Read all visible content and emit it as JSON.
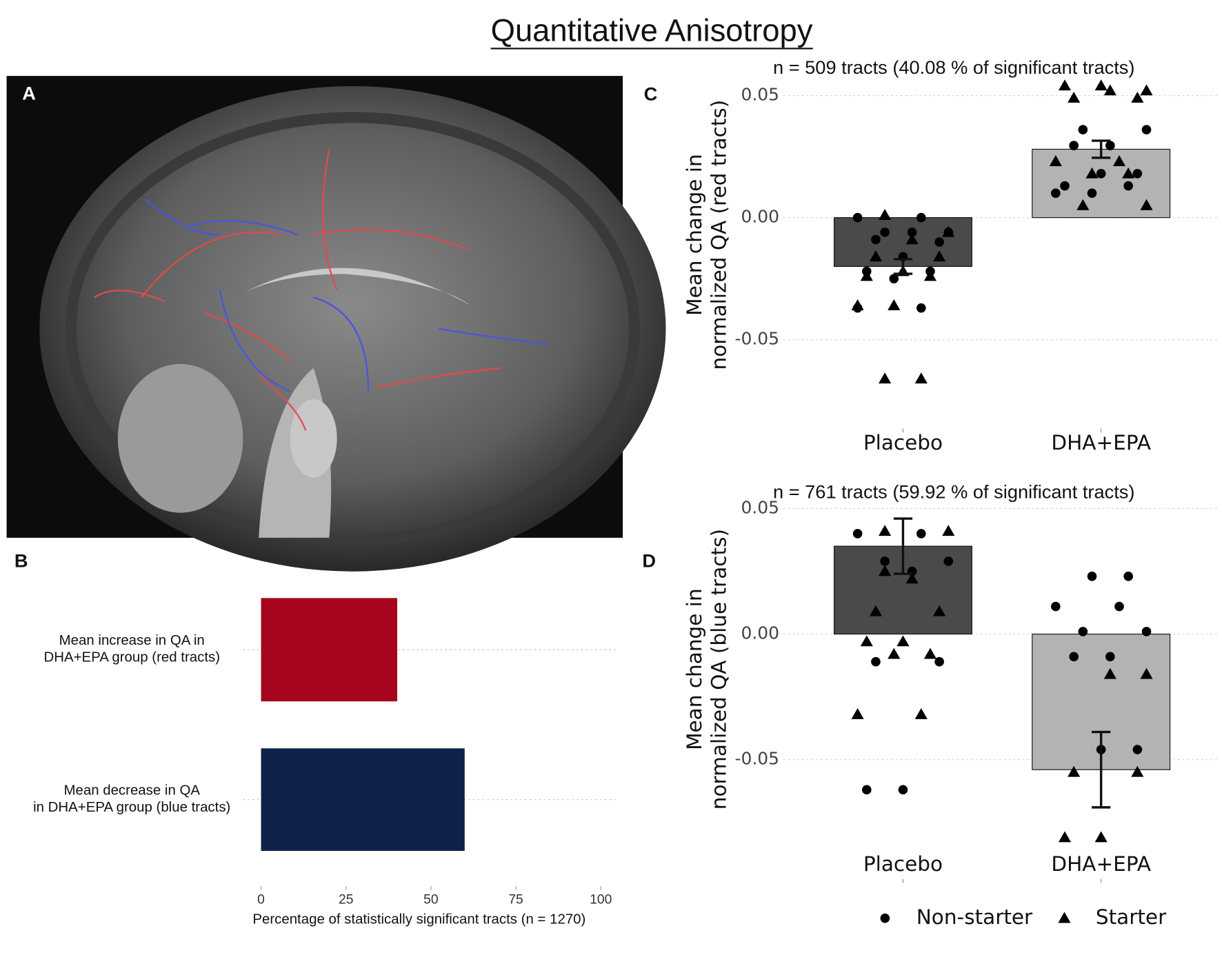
{
  "title": "Quantitative Anisotropy",
  "panel_labels": [
    "A",
    "B",
    "C",
    "D"
  ],
  "chart_data": [
    {
      "type": "barh",
      "categories": [
        "Mean increase in QA in\nDHA+EPA group (red tracts)",
        "Mean decrease in QA\nin DHA+EPA group (blue tracts)"
      ],
      "values": [
        40.08,
        59.92
      ],
      "colors": [
        "#a6051d",
        "#0e224a"
      ],
      "xlabel": "Percentage of statistically significant tracts (n = 1270)",
      "xlim": [
        0,
        100
      ],
      "xticks": [
        0,
        25,
        50,
        75,
        100
      ]
    },
    {
      "type": "bar",
      "subtitle": "n = 509 tracts (40.08 % of significant tracts)",
      "ylabel": "Mean change in\nnormalized QA (red tracts)",
      "categories": [
        "Placebo",
        "DHA+EPA"
      ],
      "values": [
        -0.02,
        0.028
      ],
      "errors": [
        0.003,
        0.0035
      ],
      "colors": [
        "#4a4a4a",
        "#b3b3b3"
      ],
      "ylim": [
        -0.071,
        0.056
      ],
      "yticks": [
        {
          "value": -0.05,
          "label": "-0.05"
        },
        {
          "value": 0,
          "label": "0.00"
        },
        {
          "value": 0.05,
          "label": "0.05"
        }
      ],
      "grid": true,
      "series": [
        {
          "name": "Non-starter",
          "marker": "circle",
          "color": "#000000",
          "x": [
            0,
            0,
            0,
            0,
            0,
            0,
            0,
            0,
            0,
            0,
            0,
            0,
            0,
            1,
            1,
            1,
            1,
            1,
            1,
            1,
            1,
            1,
            1
          ],
          "values": [
            0.0,
            0.0,
            -0.006,
            -0.006,
            -0.006,
            -0.009,
            -0.01,
            -0.016,
            -0.022,
            -0.022,
            -0.025,
            -0.037,
            -0.037,
            0.036,
            0.036,
            0.0295,
            0.0295,
            0.018,
            0.018,
            0.013,
            0.013,
            0.01,
            0.01
          ]
        },
        {
          "name": "Starter",
          "marker": "triangle",
          "color": "#000000",
          "x": [
            0,
            0,
            0,
            0,
            0,
            0,
            0,
            0,
            0,
            0,
            0,
            0,
            1,
            1,
            1,
            1,
            1,
            1,
            1,
            1,
            1,
            1,
            1,
            1
          ],
          "values": [
            0.001,
            -0.006,
            -0.009,
            -0.016,
            -0.016,
            -0.022,
            -0.024,
            -0.024,
            -0.036,
            -0.036,
            -0.066,
            -0.066,
            0.052,
            0.052,
            0.049,
            0.049,
            0.054,
            0.054,
            0.018,
            0.018,
            0.023,
            0.023,
            0.005,
            0.005
          ]
        }
      ]
    },
    {
      "type": "bar",
      "subtitle": "n = 761 tracts (59.92 % of significant tracts)",
      "ylabel": "Mean change in\nnormalized QA (blue tracts)",
      "categories": [
        "Placebo",
        "DHA+EPA"
      ],
      "values": [
        0.035,
        -0.054
      ],
      "errors": [
        0.011,
        0.015
      ],
      "colors": [
        "#4a4a4a",
        "#b3b3b3"
      ],
      "ylim": [
        -0.0826,
        0.053
      ],
      "yticks": [
        {
          "value": -0.05,
          "label": "-0.05"
        },
        {
          "value": 0,
          "label": "0.00"
        },
        {
          "value": 0.05,
          "label": "0.05"
        }
      ],
      "grid": true,
      "legend": "bottom",
      "series": [
        {
          "name": "Non-starter",
          "marker": "circle",
          "color": "#000000",
          "x": [
            0,
            0,
            0,
            0,
            0,
            0,
            0,
            0,
            0,
            1,
            1,
            1,
            1,
            1,
            1,
            1,
            1,
            1,
            1
          ],
          "values": [
            0.04,
            0.04,
            0.029,
            0.029,
            0.025,
            -0.011,
            -0.011,
            -0.062,
            -0.062,
            0.023,
            0.023,
            0.011,
            0.011,
            0.001,
            0.001,
            -0.009,
            -0.009,
            -0.046,
            -0.046
          ]
        },
        {
          "name": "Starter",
          "marker": "triangle",
          "color": "#000000",
          "x": [
            0,
            0,
            0,
            0,
            0,
            0,
            0,
            0,
            0,
            0,
            0,
            0,
            1,
            1,
            1,
            1,
            1,
            1
          ],
          "values": [
            0.041,
            0.041,
            0.022,
            0.009,
            0.009,
            -0.003,
            -0.003,
            -0.008,
            -0.008,
            -0.032,
            -0.032,
            0.025,
            -0.016,
            -0.016,
            -0.055,
            -0.055,
            -0.081,
            -0.081
          ]
        }
      ]
    }
  ]
}
